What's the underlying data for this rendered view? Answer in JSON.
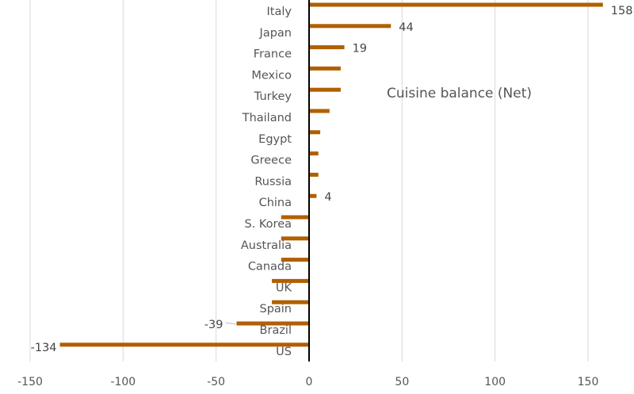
{
  "chart_data": {
    "type": "bar",
    "orientation": "horizontal",
    "title": "Cuisine balance (Net)",
    "xlabel": "",
    "ylabel": "",
    "xlim": [
      -150,
      160
    ],
    "xticks": [
      -150,
      -100,
      -50,
      0,
      50,
      100,
      150
    ],
    "grid": "vertical",
    "categories": [
      "Italy",
      "Japan",
      "France",
      "Mexico",
      "Turkey",
      "Thailand",
      "Egypt",
      "Greece",
      "Russia",
      "China",
      "S. Korea",
      "Australia",
      "Canada",
      "UK",
      "Spain",
      "Brazil",
      "US"
    ],
    "values": [
      158,
      44,
      19,
      17,
      17,
      11,
      6,
      5,
      5,
      4,
      -15,
      -15,
      -15,
      -20,
      -20,
      -39,
      -134
    ],
    "data_labels": {
      "Italy": "158",
      "Japan": "44",
      "France": "19",
      "China": "4",
      "Brazil": "-39",
      "US": "-134"
    },
    "bar_color": "#b15f00"
  }
}
